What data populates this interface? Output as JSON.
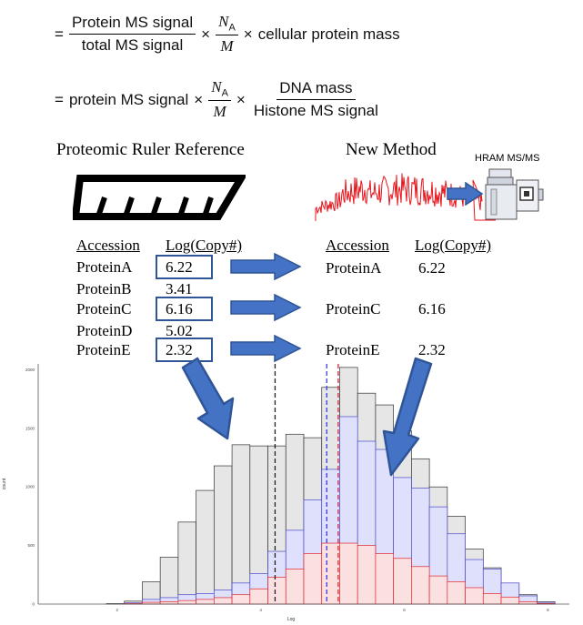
{
  "formula": {
    "line1": {
      "eq": "=",
      "numerator": "Protein MS signal",
      "denominator": "total MS signal",
      "times": "×",
      "na_num": "N",
      "na_sub": "A",
      "na_den": "M",
      "tail": "cellular protein mass"
    },
    "line2": {
      "eq": "=",
      "lead": "protein MS signal",
      "times": "×",
      "na_num": "N",
      "na_sub": "A",
      "na_den": "M",
      "numerator": "DNA mass",
      "denominator": "Histone MS signal"
    }
  },
  "labels": {
    "ruler_title": "Proteomic Ruler Reference",
    "new_title": "New Method",
    "instrument": "HRAM MS/MS"
  },
  "left_table": {
    "header_accession": "Accession",
    "header_value": "Log(Copy#)",
    "rows": [
      {
        "name": "ProteinA",
        "value": "6.22",
        "highlighted": true
      },
      {
        "name": "ProteinB",
        "value": "3.41",
        "highlighted": false
      },
      {
        "name": "ProteinC",
        "value": "6.16",
        "highlighted": true
      },
      {
        "name": "ProteinD",
        "value": "5.02",
        "highlighted": false
      },
      {
        "name": "ProteinE",
        "value": "2.32",
        "highlighted": true
      }
    ]
  },
  "right_table": {
    "header_accession": "Accession",
    "header_value": "Log(Copy#)",
    "rows": [
      {
        "name": "ProteinA",
        "value": "6.22"
      },
      {
        "name": "ProteinC",
        "value": "6.16"
      },
      {
        "name": "ProteinE",
        "value": "2.32"
      }
    ]
  },
  "colors": {
    "arrow_blue": "#4472c4",
    "box_border": "#2f5596",
    "spectrum_red": "#e8141b",
    "gray_bar": "#e6e6e6",
    "blue_bar": "#dfe0fb",
    "red_bar": "#fbe0e2",
    "line_black": "#222222",
    "line_blue": "#3b3bdf",
    "line_red": "#e0262c"
  },
  "histogram": {
    "xlabel": "Log",
    "ylabel": "count",
    "x_ticks": [
      "2",
      "4",
      "6",
      "8"
    ],
    "y_ticks": [
      "0",
      "500",
      "1000",
      "1500",
      "2000"
    ],
    "x_range": [
      0.9,
      8.3
    ],
    "y_range": [
      0,
      2050
    ],
    "bin_start": 1.85,
    "bin_width": 0.25,
    "gray": [
      4,
      25,
      190,
      400,
      700,
      970,
      1180,
      1360,
      1350,
      1350,
      1450,
      1420,
      1850,
      2020,
      1800,
      1700,
      1480,
      1240,
      1000,
      750,
      470,
      310,
      180,
      80,
      20
    ],
    "blue": [
      0,
      10,
      40,
      55,
      80,
      90,
      120,
      180,
      260,
      450,
      630,
      890,
      1150,
      1600,
      1390,
      1320,
      1080,
      990,
      830,
      600,
      380,
      300,
      180,
      70,
      15
    ],
    "red": [
      0,
      4,
      15,
      20,
      30,
      40,
      55,
      80,
      130,
      230,
      300,
      430,
      520,
      520,
      500,
      430,
      390,
      320,
      240,
      190,
      140,
      90,
      60,
      20,
      5
    ],
    "vlines": [
      {
        "x": 4.2,
        "color": "#222222"
      },
      {
        "x": 4.92,
        "color": "#3b3bdf"
      },
      {
        "x": 5.08,
        "color": "#e0262c"
      }
    ]
  }
}
